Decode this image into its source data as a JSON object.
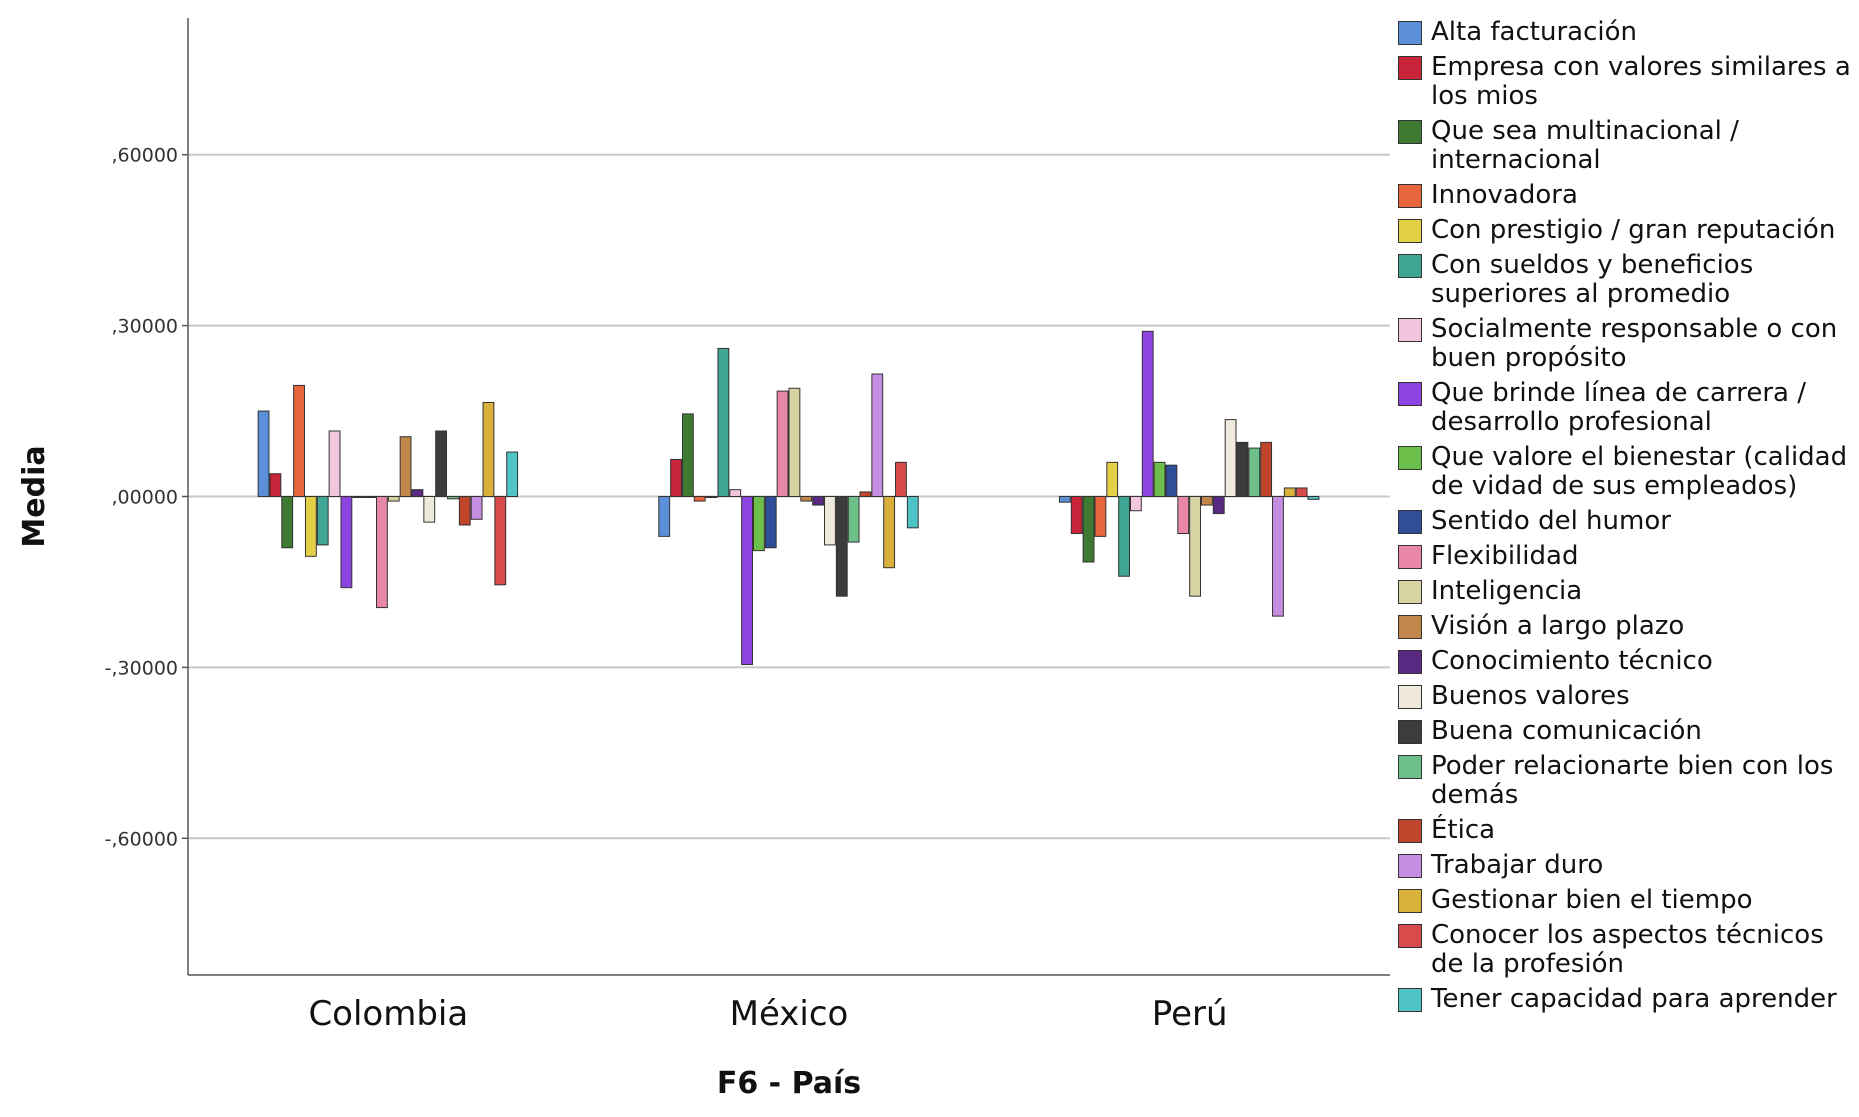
{
  "chart_data": {
    "type": "bar",
    "xlabel": "F6 - País",
    "ylabel": "Media",
    "ylim": [
      -0.84,
      0.84
    ],
    "yticks": [
      -0.6,
      -0.3,
      0,
      0.3,
      0.6
    ],
    "ytick_labels": [
      "-,60000",
      "-,30000",
      ",00000",
      ",30000",
      ",60000"
    ],
    "grid": true,
    "legend_position": "right",
    "categories": [
      "Colombia",
      "México",
      "Perú"
    ],
    "series": [
      {
        "name": "Alta facturación",
        "color": "#5b8fd8",
        "values": [
          0.15,
          -0.07,
          -0.01
        ]
      },
      {
        "name": "Empresa con valores similares a los mios",
        "color": "#c8243a",
        "values": [
          0.04,
          0.065,
          -0.065
        ]
      },
      {
        "name": "Que sea multinacional / internacional",
        "color": "#3f7a33",
        "values": [
          -0.09,
          0.145,
          -0.115
        ]
      },
      {
        "name": "Innovadora",
        "color": "#e8663c",
        "values": [
          0.195,
          -0.008,
          -0.07
        ]
      },
      {
        "name": "Con prestigio / gran reputación",
        "color": "#e4d044",
        "values": [
          -0.105,
          0.0,
          0.06
        ]
      },
      {
        "name": "Con sueldos y beneficios superiores al promedio",
        "color": "#3fa594",
        "values": [
          -0.085,
          0.26,
          -0.14
        ]
      },
      {
        "name": "Socialmente responsable o con buen propósito",
        "color": "#f2c6dc",
        "values": [
          0.115,
          0.012,
          -0.025
        ]
      },
      {
        "name": "Que brinde línea de carrera / desarrollo profesional",
        "color": "#8d43e0",
        "values": [
          -0.16,
          -0.295,
          0.29
        ]
      },
      {
        "name": "Que valore el bienestar (calidad de vidad de sus empleados)",
        "color": "#6cbf4a",
        "values": [
          0.0,
          -0.095,
          0.06
        ]
      },
      {
        "name": "Sentido del humor",
        "color": "#2e4e9a",
        "values": [
          0.0,
          -0.09,
          0.055
        ]
      },
      {
        "name": "Flexibilidad",
        "color": "#e887a6",
        "values": [
          -0.195,
          0.185,
          -0.065
        ]
      },
      {
        "name": "Inteligencia",
        "color": "#d8d3a3",
        "values": [
          -0.008,
          0.19,
          -0.175
        ]
      },
      {
        "name": "Visión a largo plazo",
        "color": "#c1864a",
        "values": [
          0.105,
          -0.008,
          -0.015
        ]
      },
      {
        "name": "Conocimiento técnico",
        "color": "#5a2a82",
        "values": [
          0.012,
          -0.015,
          -0.03
        ]
      },
      {
        "name": "Buenos valores",
        "color": "#efeadb",
        "values": [
          -0.045,
          -0.085,
          0.135
        ]
      },
      {
        "name": "Buena comunicación",
        "color": "#3c3c3c",
        "values": [
          0.115,
          -0.175,
          0.095
        ]
      },
      {
        "name": "Poder relacionarte bien con los demás",
        "color": "#6fbf8a",
        "values": [
          -0.004,
          -0.08,
          0.085
        ]
      },
      {
        "name": "Ética",
        "color": "#c0452a",
        "values": [
          -0.05,
          0.008,
          0.095
        ]
      },
      {
        "name": "Trabajar duro",
        "color": "#c68ee0",
        "values": [
          -0.04,
          0.215,
          -0.21
        ]
      },
      {
        "name": "Gestionar bien el tiempo",
        "color": "#d9b13a",
        "values": [
          0.165,
          -0.125,
          0.015
        ]
      },
      {
        "name": "Conocer los aspectos técnicos de la profesión",
        "color": "#d94b4b",
        "values": [
          -0.155,
          0.06,
          0.015
        ]
      },
      {
        "name": "Tener capacidad para aprender",
        "color": "#4fc4c8",
        "values": [
          0.078,
          -0.055,
          -0.005
        ]
      }
    ]
  }
}
